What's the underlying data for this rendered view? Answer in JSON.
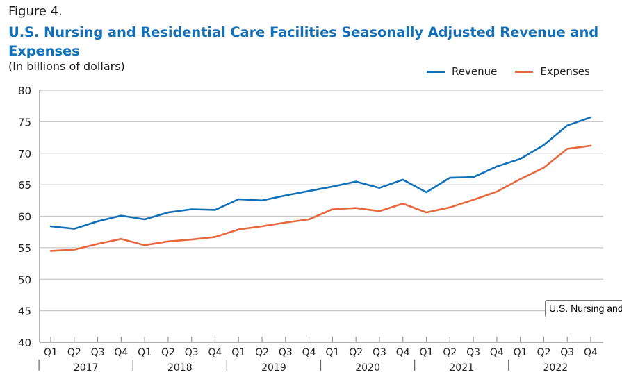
{
  "figure_label": "Figure 4.",
  "title": "U.S. Nursing and Residential Care Facilities Seasonally Adjusted Revenue and Expenses",
  "subtitle": "(In billions of dollars)",
  "tooltip": "U.S. Nursing and",
  "colors": {
    "revenue": "#1070b8",
    "expenses": "#e8673c",
    "title": "#1070b8",
    "grid": "#c8c8c8",
    "axis": "#9a9a9a"
  },
  "legend": [
    {
      "name": "Revenue",
      "color": "#1070b8"
    },
    {
      "name": "Expenses",
      "color": "#e8673c"
    }
  ],
  "chart_data": {
    "type": "line",
    "title": "U.S. Nursing and Residential Care Facilities Seasonally Adjusted Revenue and Expenses",
    "subtitle": "(In billions of dollars)",
    "xlabel": "",
    "ylabel": "",
    "ylim": [
      40,
      80
    ],
    "yticks": [
      40,
      45,
      50,
      55,
      60,
      65,
      70,
      75,
      80
    ],
    "grid": true,
    "legend_position": "top-right",
    "categories": [
      "Q1",
      "Q2",
      "Q3",
      "Q4",
      "Q1",
      "Q2",
      "Q3",
      "Q4",
      "Q1",
      "Q2",
      "Q3",
      "Q4",
      "Q1",
      "Q2",
      "Q3",
      "Q4",
      "Q1",
      "Q2",
      "Q3",
      "Q4",
      "Q1",
      "Q2",
      "Q3",
      "Q4"
    ],
    "years": [
      "2017",
      "2018",
      "2019",
      "2020",
      "2021",
      "2022"
    ],
    "series": [
      {
        "name": "Revenue",
        "color": "#1070b8",
        "values": [
          58.4,
          58.0,
          59.2,
          60.1,
          59.5,
          60.6,
          61.1,
          61.0,
          62.7,
          62.5,
          63.3,
          64.0,
          64.7,
          65.5,
          64.5,
          65.8,
          63.8,
          66.1,
          66.2,
          67.9,
          69.1,
          71.3,
          74.4,
          75.7
        ]
      },
      {
        "name": "Expenses",
        "color": "#e8673c",
        "values": [
          54.5,
          54.7,
          55.6,
          56.4,
          55.4,
          56.0,
          56.3,
          56.7,
          57.9,
          58.4,
          59.0,
          59.5,
          61.1,
          61.3,
          60.8,
          62.0,
          60.6,
          61.4,
          62.6,
          63.9,
          65.9,
          67.7,
          70.7,
          71.2
        ]
      }
    ]
  }
}
